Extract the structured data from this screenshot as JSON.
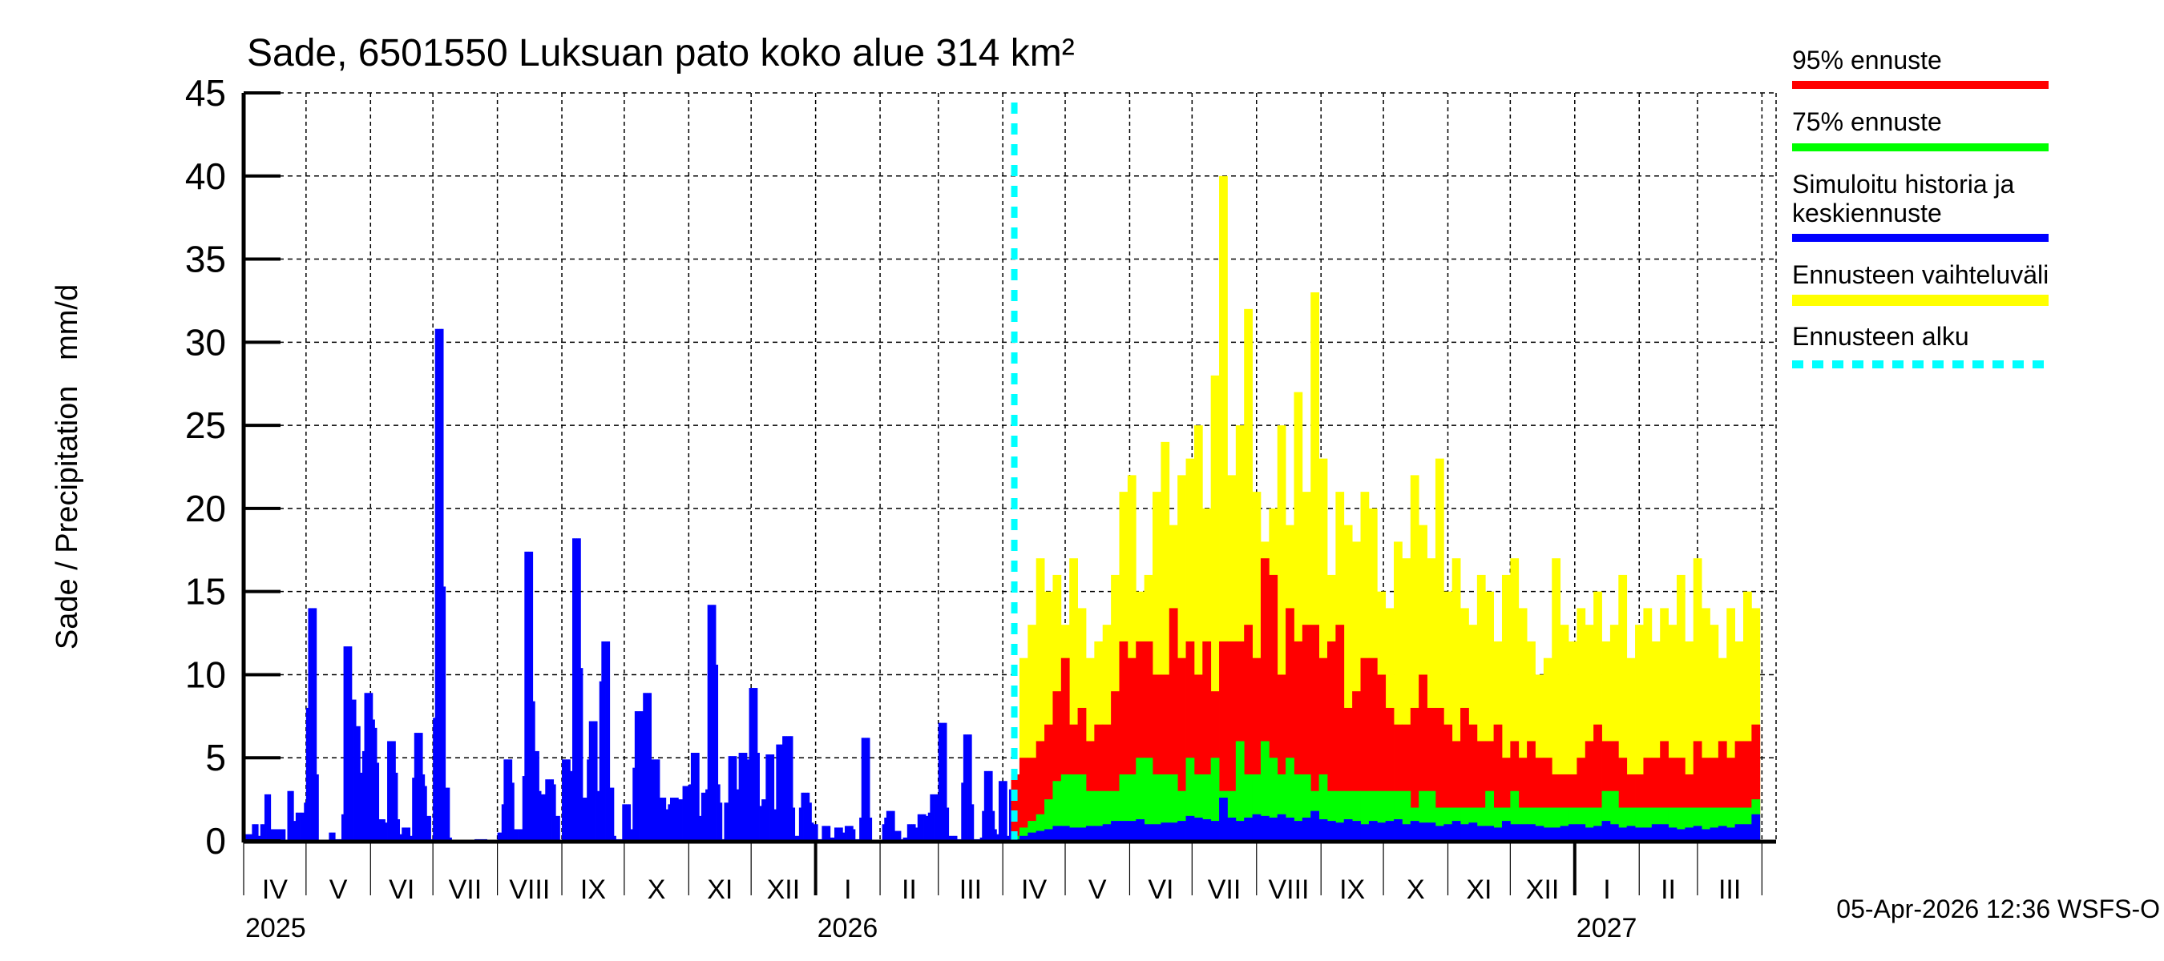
{
  "chart_data": {
    "type": "bar",
    "title": "Sade, 6501550 Luksuan pato koko alue 314 km²",
    "ylabel": "Sade / Precipitation   mm/d",
    "xlabel": "",
    "ylim": [
      0,
      45
    ],
    "y_ticks": [
      "0",
      "5",
      "10",
      "15",
      "20",
      "25",
      "30",
      "35",
      "40",
      "45"
    ],
    "grid": true,
    "x_range": [
      "2025-04-01",
      "2027-04-07"
    ],
    "month_labels": [
      "IV",
      "V",
      "VI",
      "VII",
      "VIII",
      "IX",
      "X",
      "XI",
      "XII",
      "I",
      "II",
      "III",
      "IV",
      "V",
      "VI",
      "VII",
      "VIII",
      "IX",
      "X",
      "XI",
      "XII",
      "I",
      "II",
      "III"
    ],
    "year_labels": [
      "2025",
      "2026",
      "2027"
    ],
    "legend_position": "right",
    "legend": [
      {
        "label": "95% ennuste",
        "color": "#ff0000"
      },
      {
        "label": "75% ennuste",
        "color": "#00ff00"
      },
      {
        "label_line1": "Simuloitu historia ja",
        "label_line2": "keskiennuste",
        "color": "#0000ff"
      },
      {
        "label": "Ennusteen vaihteluväli",
        "color": "#ffff00"
      },
      {
        "label": "Ennusteen alku",
        "color": "#00ffff"
      }
    ],
    "history": {
      "name": "Simuloitu historia ja keskiennuste",
      "color": "#0000ff",
      "x_start": "2025-04-01",
      "values": [
        0.4,
        0.4,
        0.4,
        0.4,
        1,
        1,
        1,
        0.3,
        1,
        1,
        2.8,
        2.8,
        2.8,
        0.7,
        0.7,
        0.7,
        0.7,
        0.7,
        0.7,
        0.7,
        0,
        3,
        3,
        3,
        1.2,
        1.7,
        1.7,
        1.7,
        1.7,
        2.3,
        8,
        14,
        14,
        14,
        14,
        4,
        0,
        0,
        0,
        0,
        0,
        0.5,
        0.5,
        0.5,
        0.1,
        0.1,
        0.1,
        1.6,
        11.7,
        11.7,
        11.7,
        11.7,
        8.5,
        8.5,
        6.9,
        6.9,
        4.1,
        5.4,
        8.9,
        8.9,
        8.9,
        8.9,
        7.3,
        6.8,
        4.7,
        1.3,
        1.3,
        1.3,
        1.1,
        6,
        6,
        6,
        6,
        4.1,
        1.3,
        0.4,
        0.8,
        0.8,
        0.8,
        0.8,
        0.3,
        3.8,
        6.5,
        6.5,
        6.5,
        6.5,
        4,
        3.3,
        1.5,
        1.5,
        0.1,
        7.4,
        30.8,
        30.8,
        30.8,
        30.8,
        15.3,
        3.2,
        3.2,
        0.2,
        0,
        0,
        0,
        0,
        0,
        0,
        0,
        0,
        0,
        0,
        0,
        0.1,
        0.1,
        0.1,
        0.1,
        0.1,
        0.1,
        0.05,
        0.05,
        0.05,
        0.05,
        0.05,
        0.5,
        0.5,
        2.2,
        4.9,
        4.9,
        4.9,
        4.9,
        3.5,
        0.7,
        0.7,
        0.7,
        0.7,
        3.9,
        17.4,
        17.4,
        17.4,
        17.4,
        8.4,
        5.4,
        5.4,
        3,
        2.8,
        2.8,
        3.7,
        3.7,
        3.7,
        3.7,
        3.4,
        1.5,
        1.5,
        0,
        4.9,
        4.9,
        4.9,
        4.9,
        4.2,
        18.2,
        18.2,
        18.2,
        18.2,
        10.4,
        2.6,
        2.6,
        4.9,
        7.2,
        7.2,
        7.2,
        7.2,
        3,
        9.6,
        12,
        12,
        12,
        12,
        3.2,
        3.2,
        0.3,
        0.1,
        0.1,
        0.1,
        2.2,
        2.2,
        2.2,
        2.2,
        0.7,
        4.4,
        7.8,
        7.8,
        7.8,
        7.8,
        8.9,
        8.9,
        8.9,
        8.9,
        4.9,
        4.9,
        4.9,
        4.9,
        2.6,
        2.6,
        2.6,
        1.9,
        2.2,
        2.6,
        2.6,
        2.6,
        2.6,
        2.5,
        2.5,
        3.3,
        3.3,
        3.3,
        3.4,
        5.3,
        5.3,
        5.3,
        5.3,
        1.5,
        2.9,
        2.9,
        3.1,
        14.2,
        14.2,
        14.2,
        14.2,
        10.6,
        3.4,
        2.3,
        0.1,
        2.3,
        2.3,
        5.1,
        5.1,
        5.1,
        5.1,
        3.1,
        5.3,
        5.3,
        5.3,
        5.3,
        4.9,
        9.2,
        9.2,
        9.2,
        9.2,
        5.3,
        2.1,
        2.5,
        2.5,
        5.2,
        5.2,
        5.2,
        5.2,
        1.9,
        5.8,
        5.8,
        5.8,
        6.3,
        6.3,
        6.3,
        6.3,
        6.3,
        2,
        0.3,
        0.3,
        2,
        2.9,
        2.9,
        2.9,
        2.9,
        2.3,
        1.1,
        1,
        1,
        0.1,
        0.1,
        0.9,
        0.9,
        0.9,
        0.9,
        0.2,
        0.2,
        0.8,
        0.8,
        0.8,
        0.8,
        0.5,
        0.9,
        0.9,
        0.9,
        0.9,
        0.7,
        0.1,
        0.1,
        1.4,
        6.2,
        6.2,
        6.2,
        6.2,
        1.4,
        0,
        0,
        0,
        0,
        0,
        1,
        1.4,
        1.8,
        1.8,
        1.8,
        1.8,
        0.6,
        0.6,
        0.6,
        0.1,
        0.2,
        0.2,
        1,
        1,
        1,
        1,
        0.8,
        1.6,
        1.6,
        1.6,
        1.6,
        1.5,
        1.7,
        2.8,
        2.8,
        2.8,
        2.8,
        7.1,
        7.1,
        7.1,
        7.1,
        2,
        0.3,
        0.3,
        0.3,
        0.3,
        0.1,
        0.1,
        3.5,
        6.4,
        6.4,
        6.4,
        6.4,
        2.2,
        0.1,
        0.1,
        0.1,
        0.2,
        1.8,
        4.2,
        4.2,
        4.2,
        4.2,
        1.8,
        0.7,
        0.4,
        3.6,
        3.6,
        3.6,
        3.6,
        0.3,
        3.1
      ]
    },
    "forecast": {
      "x_start": "2026-04-05",
      "series": [
        {
          "name": "Ennusteen vaihteluväli",
          "color": "#ffff00",
          "values": [
            4,
            11,
            13,
            17,
            15,
            16,
            13,
            17,
            14,
            11,
            12,
            13,
            16,
            21,
            22,
            15,
            16,
            21,
            24,
            19,
            22,
            23,
            25,
            20,
            28,
            40,
            22,
            25,
            32,
            21,
            18,
            20,
            25,
            19,
            27,
            21,
            33,
            23,
            16,
            21,
            19,
            18,
            21,
            20,
            15,
            14,
            18,
            17,
            22,
            19,
            17,
            23,
            15,
            17,
            14,
            13,
            16,
            15,
            12,
            16,
            17,
            14,
            12,
            10,
            11,
            17,
            13,
            12,
            14,
            13,
            15,
            12,
            13,
            16,
            11,
            13,
            14,
            12,
            14,
            13,
            16,
            12,
            17,
            14,
            13,
            11,
            14,
            12,
            15,
            14
          ]
        },
        {
          "name": "95% ennuste",
          "color": "#ff0000",
          "values": [
            4,
            5,
            5,
            6,
            7,
            9,
            11,
            7,
            8,
            6,
            7,
            7,
            9,
            12,
            11,
            12,
            12,
            10,
            10,
            14,
            11,
            12,
            10,
            12,
            9,
            12,
            12,
            12,
            13,
            11,
            17,
            16,
            10,
            14,
            12,
            13,
            13,
            11,
            12,
            13,
            8,
            9,
            11,
            11,
            10,
            8,
            7,
            7,
            8,
            10,
            8,
            8,
            7,
            6,
            8,
            7,
            6,
            6,
            7,
            5,
            6,
            5,
            6,
            5,
            5,
            4,
            4,
            4,
            5,
            6,
            7,
            6,
            6,
            5,
            4,
            4,
            5,
            5,
            6,
            5,
            5,
            4,
            6,
            5,
            5,
            6,
            5,
            6,
            6,
            7
          ]
        },
        {
          "name": "75% ennuste",
          "color": "#00ff00",
          "values": [
            0.3,
            0.8,
            1.2,
            1.6,
            2.5,
            3.6,
            4,
            4,
            4,
            3,
            3,
            3,
            3,
            4,
            4,
            5,
            5,
            4,
            4,
            4,
            3,
            5,
            4,
            4,
            5,
            3,
            3,
            6,
            4,
            4,
            6,
            5,
            4,
            5,
            4,
            4,
            3,
            4,
            3,
            3,
            3,
            3,
            3,
            3,
            3,
            3,
            3,
            3,
            2,
            3,
            3,
            2,
            2,
            2,
            2,
            2,
            2,
            3,
            2,
            2,
            3,
            2,
            2,
            2,
            2,
            2,
            2,
            2,
            2,
            2,
            2,
            3,
            3,
            2,
            2,
            2,
            2,
            2,
            2,
            2,
            2,
            2,
            2,
            2,
            2,
            2,
            2,
            2,
            2,
            2.5
          ]
        },
        {
          "name": "keskiennuste",
          "color": "#0000ff",
          "values": [
            0.1,
            0.3,
            0.5,
            0.6,
            0.7,
            0.9,
            0.9,
            0.8,
            0.8,
            0.9,
            0.9,
            1.0,
            1.2,
            1.2,
            1.2,
            1.3,
            1.0,
            1.0,
            1.1,
            1.1,
            1.2,
            1.5,
            1.4,
            1.3,
            1.2,
            2.6,
            1.4,
            1.2,
            1.4,
            1.6,
            1.5,
            1.4,
            1.6,
            1.4,
            1.2,
            1.4,
            1.8,
            1.3,
            1.2,
            1.1,
            1.3,
            1.2,
            1.0,
            1.2,
            1.1,
            1.2,
            1.3,
            1.0,
            1.2,
            1.1,
            1.1,
            0.9,
            1.0,
            1.2,
            1.0,
            1.1,
            0.9,
            0.9,
            0.8,
            1.2,
            1.0,
            1.0,
            1.0,
            0.9,
            0.8,
            0.8,
            0.9,
            1.0,
            1.0,
            0.8,
            0.9,
            1.2,
            1.0,
            0.8,
            0.9,
            0.8,
            0.8,
            1.0,
            1.0,
            0.8,
            0.7,
            0.8,
            0.9,
            0.7,
            0.8,
            0.9,
            0.8,
            1.0,
            1.0,
            1.6
          ]
        }
      ]
    },
    "forecast_start": "2026-04-05",
    "timestamp": "05-Apr-2026 12:36 WSFS-O"
  }
}
